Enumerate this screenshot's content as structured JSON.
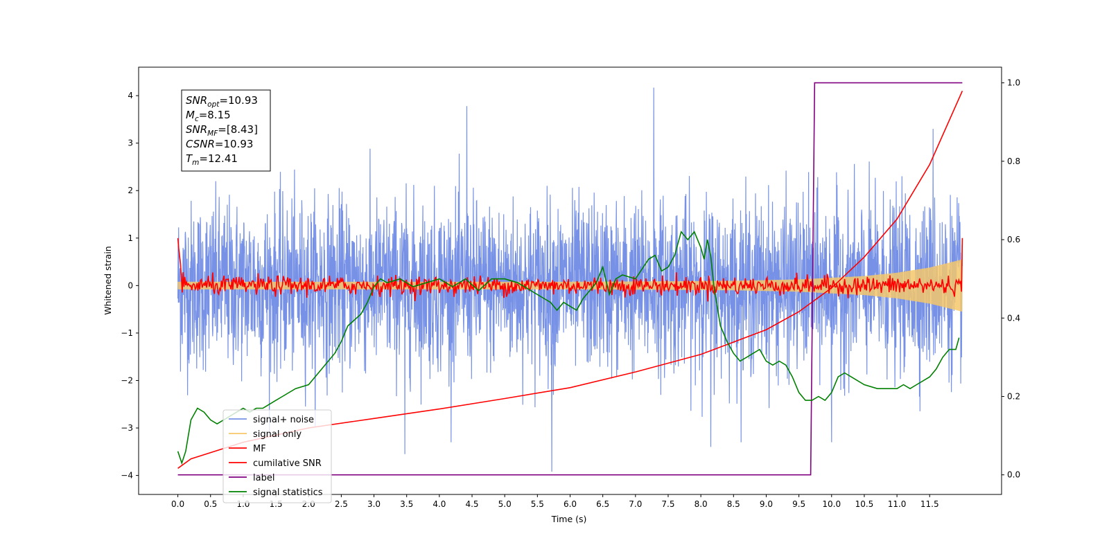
{
  "chart_data": {
    "type": "line",
    "xlabel": "Time (s)",
    "ylabel": "Whitened strain",
    "xlim": [
      -0.6,
      12.6
    ],
    "ylim": [
      -4.4,
      4.6
    ],
    "y2lim": [
      -0.05,
      1.04
    ],
    "x_ticks": [
      "0.0",
      "0.5",
      "1.0",
      "1.5",
      "2.0",
      "2.5",
      "3.0",
      "3.5",
      "4.0",
      "4.5",
      "5.0",
      "5.5",
      "6.0",
      "6.5",
      "7.0",
      "7.5",
      "8.0",
      "8.5",
      "9.0",
      "9.5",
      "10.0",
      "10.5",
      "11.0",
      "11.5"
    ],
    "y_ticks": [
      "4",
      "3",
      "2",
      "1",
      "0",
      "−1",
      "−2",
      "−3",
      "−4"
    ],
    "y2_ticks": [
      "1.0",
      "0.8",
      "0.6",
      "0.4",
      "0.2",
      "0.0"
    ],
    "grid": false,
    "legend_position": "lower-left",
    "info_box": [
      {
        "base": "SNR",
        "sub": "opt",
        "rest": "=10.93"
      },
      {
        "base": "M",
        "sub": "c",
        "rest": "=8.15"
      },
      {
        "base": "SNR",
        "sub": "MF",
        "rest": "=[8.43]"
      },
      {
        "base": "CSNR",
        "sub": "",
        "rest": "=10.93"
      },
      {
        "base": "T",
        "sub": "m",
        "rest": "=12.41"
      }
    ],
    "series": [
      {
        "name": "signal+ noise",
        "color": "#7691e6",
        "axis": "left",
        "x_range": [
          0.0,
          12.0
        ],
        "typical_range": [
          -1.6,
          1.6
        ],
        "notable_peaks": [
          {
            "x": 4.42,
            "y": 3.78
          },
          {
            "x": 7.28,
            "y": 4.17
          },
          {
            "x": 11.55,
            "y": 3.3
          },
          {
            "x": 5.72,
            "y": -3.92
          },
          {
            "x": 3.47,
            "y": -3.55
          },
          {
            "x": 8.15,
            "y": -3.4
          },
          {
            "x": 10.0,
            "y": -3.3
          }
        ]
      },
      {
        "name": "signal only",
        "color": "#f5c76b",
        "axis": "left",
        "x": [
          0.0,
          6.0,
          7.5,
          8.5,
          9.5,
          10.5,
          11.0,
          11.5,
          12.0
        ],
        "amplitude": [
          0.08,
          0.08,
          0.09,
          0.1,
          0.13,
          0.2,
          0.27,
          0.38,
          0.55
        ]
      },
      {
        "name": "MF",
        "color": "#ff0000",
        "axis": "left",
        "x_range": [
          0.0,
          12.0
        ],
        "start_value": 1.0,
        "end_value": 1.0,
        "typical_range": [
          -0.22,
          0.22
        ]
      },
      {
        "name": "cumilative SNR",
        "color": "#ff0000",
        "axis": "left",
        "x": [
          0.0,
          0.2,
          1.0,
          2.0,
          3.0,
          4.0,
          5.0,
          6.0,
          7.0,
          8.0,
          9.0,
          9.5,
          10.0,
          10.5,
          11.0,
          11.5,
          12.0
        ],
        "y": [
          -3.85,
          -3.65,
          -3.3,
          -3.0,
          -2.8,
          -2.6,
          -2.38,
          -2.15,
          -1.82,
          -1.45,
          -0.93,
          -0.55,
          -0.05,
          0.6,
          1.4,
          2.55,
          4.1
        ]
      },
      {
        "name": "label",
        "color": "#800080",
        "axis": "right",
        "x": [
          0.0,
          9.68,
          9.74,
          12.0
        ],
        "y": [
          0.0,
          0.0,
          1.0,
          1.0
        ]
      },
      {
        "name": "signal statistics",
        "color": "#008000",
        "axis": "right",
        "x": [
          0.0,
          0.06,
          0.12,
          0.2,
          0.3,
          0.4,
          0.5,
          0.6,
          0.7,
          0.8,
          0.9,
          1.0,
          1.1,
          1.2,
          1.3,
          1.4,
          1.5,
          1.6,
          1.8,
          2.0,
          2.2,
          2.4,
          2.5,
          2.6,
          2.8,
          2.9,
          3.0,
          3.1,
          3.2,
          3.4,
          3.6,
          3.8,
          4.0,
          4.2,
          4.4,
          4.6,
          4.8,
          5.0,
          5.2,
          5.4,
          5.6,
          5.7,
          5.8,
          5.9,
          6.0,
          6.1,
          6.2,
          6.3,
          6.4,
          6.5,
          6.6,
          6.7,
          6.8,
          7.0,
          7.2,
          7.3,
          7.4,
          7.5,
          7.6,
          7.7,
          7.8,
          7.9,
          8.0,
          8.05,
          8.1,
          8.15,
          8.2,
          8.3,
          8.4,
          8.5,
          8.6,
          8.7,
          8.8,
          8.9,
          9.0,
          9.1,
          9.2,
          9.3,
          9.4,
          9.5,
          9.6,
          9.7,
          9.8,
          9.9,
          10.0,
          10.1,
          10.2,
          10.3,
          10.5,
          10.7,
          10.9,
          11.0,
          11.1,
          11.2,
          11.3,
          11.5,
          11.6,
          11.7,
          11.8,
          11.9,
          11.95
        ],
        "y": [
          0.06,
          0.03,
          0.06,
          0.14,
          0.17,
          0.16,
          0.14,
          0.13,
          0.14,
          0.15,
          0.16,
          0.17,
          0.16,
          0.17,
          0.17,
          0.18,
          0.19,
          0.2,
          0.22,
          0.23,
          0.27,
          0.31,
          0.34,
          0.38,
          0.41,
          0.44,
          0.48,
          0.5,
          0.49,
          0.5,
          0.48,
          0.49,
          0.5,
          0.48,
          0.5,
          0.47,
          0.5,
          0.5,
          0.49,
          0.47,
          0.45,
          0.44,
          0.42,
          0.44,
          0.43,
          0.42,
          0.45,
          0.47,
          0.49,
          0.53,
          0.46,
          0.5,
          0.51,
          0.5,
          0.55,
          0.56,
          0.52,
          0.53,
          0.56,
          0.62,
          0.6,
          0.62,
          0.58,
          0.55,
          0.6,
          0.56,
          0.48,
          0.38,
          0.34,
          0.31,
          0.29,
          0.3,
          0.31,
          0.32,
          0.29,
          0.28,
          0.29,
          0.28,
          0.25,
          0.21,
          0.19,
          0.19,
          0.2,
          0.19,
          0.21,
          0.25,
          0.26,
          0.25,
          0.23,
          0.22,
          0.22,
          0.22,
          0.23,
          0.22,
          0.23,
          0.25,
          0.27,
          0.3,
          0.32,
          0.32,
          0.35
        ]
      }
    ]
  }
}
